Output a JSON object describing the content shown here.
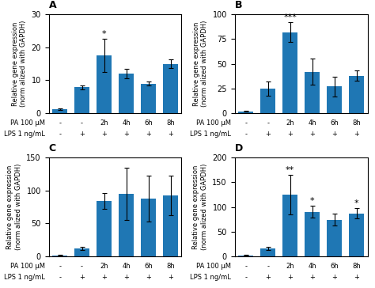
{
  "chart_data": [
    {
      "type": "bar",
      "title": "A",
      "ylabel": "Relative gene expression\n(norm alized with GAPDH)",
      "categories": [
        "-",
        "-",
        "2h",
        "4h",
        "6h",
        "8h"
      ],
      "category_title": "PA 100 μM",
      "categories2": [
        "-",
        "+",
        "+",
        "+",
        "+",
        "+"
      ],
      "category_title2": "LPS 1 ng/mL",
      "values": [
        1.2,
        7.9,
        17.5,
        12.0,
        9.0,
        15.0
      ],
      "errors": [
        0.3,
        0.6,
        5.0,
        1.5,
        0.6,
        1.3
      ],
      "ylim": [
        0,
        30
      ],
      "yticks": [
        0,
        10,
        20,
        30
      ],
      "annotations": [
        {
          "index": 2,
          "text": "*"
        }
      ]
    },
    {
      "type": "bar",
      "title": "B",
      "ylabel": "Relative gene expression\n(norm alized with GAPDH)",
      "categories": [
        "-",
        "-",
        "2h",
        "4h",
        "6h",
        "8h"
      ],
      "category_title": "PA 100 μM",
      "categories2": [
        "-",
        "+",
        "+",
        "+",
        "+",
        "+"
      ],
      "category_title2": "LPS 1 ng/mL",
      "values": [
        2.0,
        25.0,
        82.0,
        42.0,
        27.0,
        38.0
      ],
      "errors": [
        0.5,
        7.0,
        10.0,
        13.0,
        10.0,
        5.0
      ],
      "ylim": [
        0,
        100
      ],
      "yticks": [
        0,
        25,
        50,
        75,
        100
      ],
      "annotations": [
        {
          "index": 2,
          "text": "***"
        }
      ]
    },
    {
      "type": "bar",
      "title": "C",
      "ylabel": "Relative gene expression\n(norm alized with GAPDH)",
      "categories": [
        "-",
        "-",
        "2h",
        "4h",
        "6h",
        "8h"
      ],
      "category_title": "PA 100 μM",
      "categories2": [
        "-",
        "+",
        "+",
        "+",
        "+",
        "+"
      ],
      "category_title2": "LPS 1 ng/mL",
      "values": [
        1.5,
        12.0,
        84.0,
        95.0,
        88.0,
        92.0
      ],
      "errors": [
        0.5,
        2.5,
        12.0,
        40.0,
        35.0,
        30.0
      ],
      "ylim": [
        0,
        150
      ],
      "yticks": [
        0,
        50,
        100,
        150
      ]
    },
    {
      "type": "bar",
      "title": "D",
      "ylabel": "Relative gene expression\n(norm alized with GAPDH)",
      "categories": [
        "-",
        "-",
        "2h",
        "4h",
        "6h",
        "8h"
      ],
      "category_title": "PA 100 μM",
      "categories2": [
        "-",
        "+",
        "+",
        "+",
        "+",
        "+"
      ],
      "category_title2": "LPS 1 ng/mL",
      "values": [
        2.0,
        16.0,
        125.0,
        90.0,
        74.0,
        87.0
      ],
      "errors": [
        0.5,
        2.5,
        40.0,
        12.0,
        12.0,
        10.0
      ],
      "ylim": [
        0,
        200
      ],
      "yticks": [
        0,
        50,
        100,
        150,
        200
      ],
      "annotations": [
        {
          "index": 2,
          "text": "**"
        },
        {
          "index": 3,
          "text": "*"
        },
        {
          "index": 5,
          "text": "*"
        }
      ]
    }
  ]
}
